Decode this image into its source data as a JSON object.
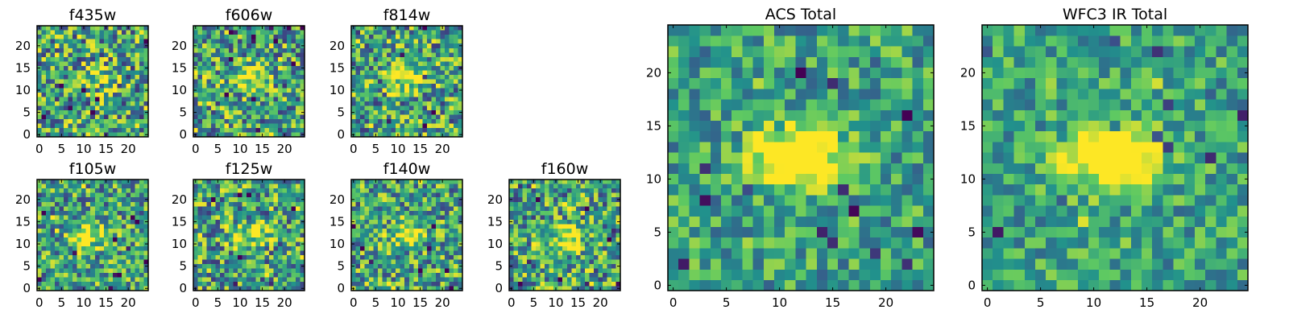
{
  "chart_data": {
    "type": "heatmap",
    "colormap": [
      "#440154",
      "#3b528b",
      "#21918c",
      "#5ec962",
      "#fde725"
    ],
    "panels": [
      {
        "id": "f435w",
        "title": "f435w",
        "grid_size": 25,
        "seed": 11,
        "center": [
          12,
          13
        ],
        "peak_boost": 0.25,
        "noise": 0.85,
        "xticks": [
          0,
          5,
          10,
          15,
          20
        ],
        "yticks": [
          0,
          5,
          10,
          15,
          20
        ]
      },
      {
        "id": "f606w",
        "title": "f606w",
        "grid_size": 25,
        "seed": 23,
        "center": [
          12,
          13
        ],
        "peak_boost": 0.45,
        "noise": 0.8,
        "xticks": [
          0,
          5,
          10,
          15,
          20
        ],
        "yticks": [
          0,
          5,
          10,
          15,
          20
        ]
      },
      {
        "id": "f814w",
        "title": "f814w",
        "grid_size": 25,
        "seed": 37,
        "center": [
          12,
          13
        ],
        "peak_boost": 0.5,
        "noise": 0.8,
        "xticks": [
          0,
          5,
          10,
          15,
          20
        ],
        "yticks": [
          0,
          5,
          10,
          15,
          20
        ]
      },
      {
        "id": "f105w",
        "title": "f105w",
        "grid_size": 25,
        "seed": 41,
        "center": [
          11,
          12
        ],
        "peak_boost": 0.45,
        "noise": 0.75,
        "xticks": [
          0,
          5,
          10,
          15,
          20
        ],
        "yticks": [
          0,
          5,
          10,
          15,
          20
        ]
      },
      {
        "id": "f125w",
        "title": "f125w",
        "grid_size": 25,
        "seed": 53,
        "center": [
          12,
          12
        ],
        "peak_boost": 0.4,
        "noise": 0.8,
        "xticks": [
          0,
          5,
          10,
          15,
          20
        ],
        "yticks": [
          0,
          5,
          10,
          15,
          20
        ]
      },
      {
        "id": "f140w",
        "title": "f140w",
        "grid_size": 25,
        "seed": 67,
        "center": [
          12,
          12
        ],
        "peak_boost": 0.45,
        "noise": 0.75,
        "xticks": [
          0,
          5,
          10,
          15,
          20
        ],
        "yticks": [
          0,
          5,
          10,
          15,
          20
        ]
      },
      {
        "id": "f160w",
        "title": "f160w",
        "grid_size": 25,
        "seed": 79,
        "center": [
          13,
          12
        ],
        "peak_boost": 0.5,
        "noise": 0.8,
        "xticks": [
          0,
          5,
          10,
          15,
          20
        ],
        "yticks": [
          0,
          5,
          10,
          15,
          20
        ]
      },
      {
        "id": "acs-total",
        "title": "ACS Total",
        "grid_size": 25,
        "seed": 97,
        "center": [
          12,
          12
        ],
        "peak_boost": 0.9,
        "noise": 0.55,
        "xticks": [
          0,
          5,
          10,
          15,
          20
        ],
        "yticks": [
          0,
          5,
          10,
          15,
          20
        ]
      },
      {
        "id": "wfc3-ir-total",
        "title": "WFC3 IR Total",
        "grid_size": 25,
        "seed": 113,
        "center": [
          12,
          12
        ],
        "peak_boost": 0.95,
        "noise": 0.5,
        "xticks": [
          0,
          5,
          10,
          15,
          20
        ],
        "yticks": [
          0,
          5,
          10,
          15,
          20
        ]
      }
    ]
  }
}
